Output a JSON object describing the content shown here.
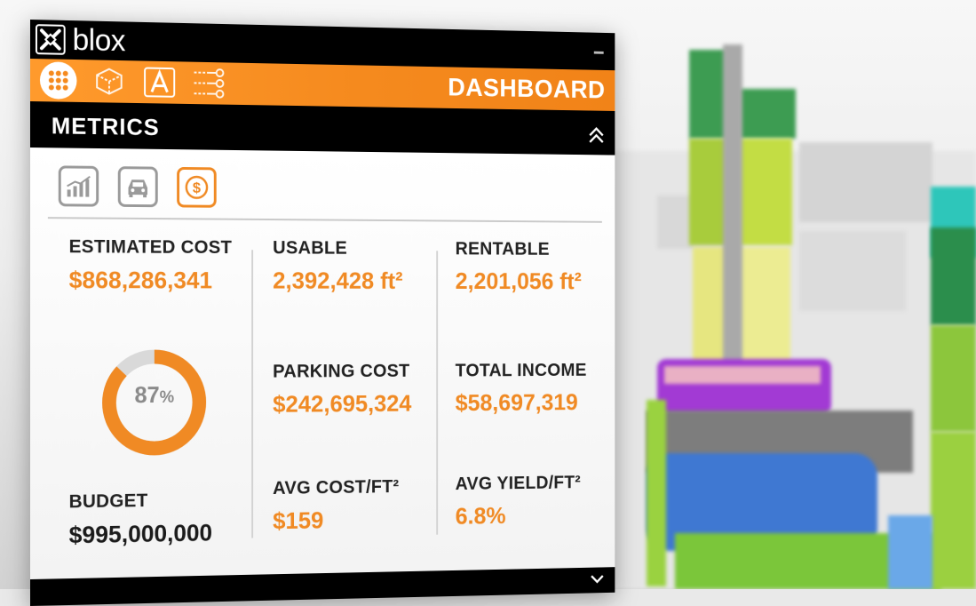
{
  "app": {
    "name": "blox"
  },
  "toolbar": {
    "tools": [
      {
        "icon": "grid-icon",
        "active": true
      },
      {
        "icon": "cube-icon",
        "active": false
      },
      {
        "icon": "letter-a-icon",
        "active": false
      },
      {
        "icon": "flow-icon",
        "active": false
      }
    ],
    "title": "DASHBOARD"
  },
  "section": {
    "title": "METRICS"
  },
  "tabs": [
    {
      "icon": "chart-icon",
      "active": false
    },
    {
      "icon": "car-icon",
      "active": false
    },
    {
      "icon": "dollar-icon",
      "active": true
    }
  ],
  "metrics": {
    "estimated_cost": {
      "label": "ESTIMATED COST",
      "value": "$868,286,341"
    },
    "usable": {
      "label": "USABLE",
      "value": "2,392,428 ft²"
    },
    "rentable": {
      "label": "RENTABLE",
      "value": "2,201,056 ft²"
    },
    "parking_cost": {
      "label": "PARKING COST",
      "value": "$242,695,324"
    },
    "total_income": {
      "label": "TOTAL INCOME",
      "value": "$58,697,319"
    },
    "budget": {
      "label": "BUDGET",
      "value": "$995,000,000"
    },
    "avg_cost": {
      "label": "AVG COST/FT²",
      "value": "$159"
    },
    "avg_yield": {
      "label": "AVG YIELD/FT²",
      "value": "6.8%"
    }
  },
  "budget_gauge": {
    "percent": 87,
    "number": "87",
    "unit": "%"
  },
  "colors": {
    "accent": "#f08a24",
    "donut_track": "#d9d9d9",
    "bar": "#000000"
  }
}
